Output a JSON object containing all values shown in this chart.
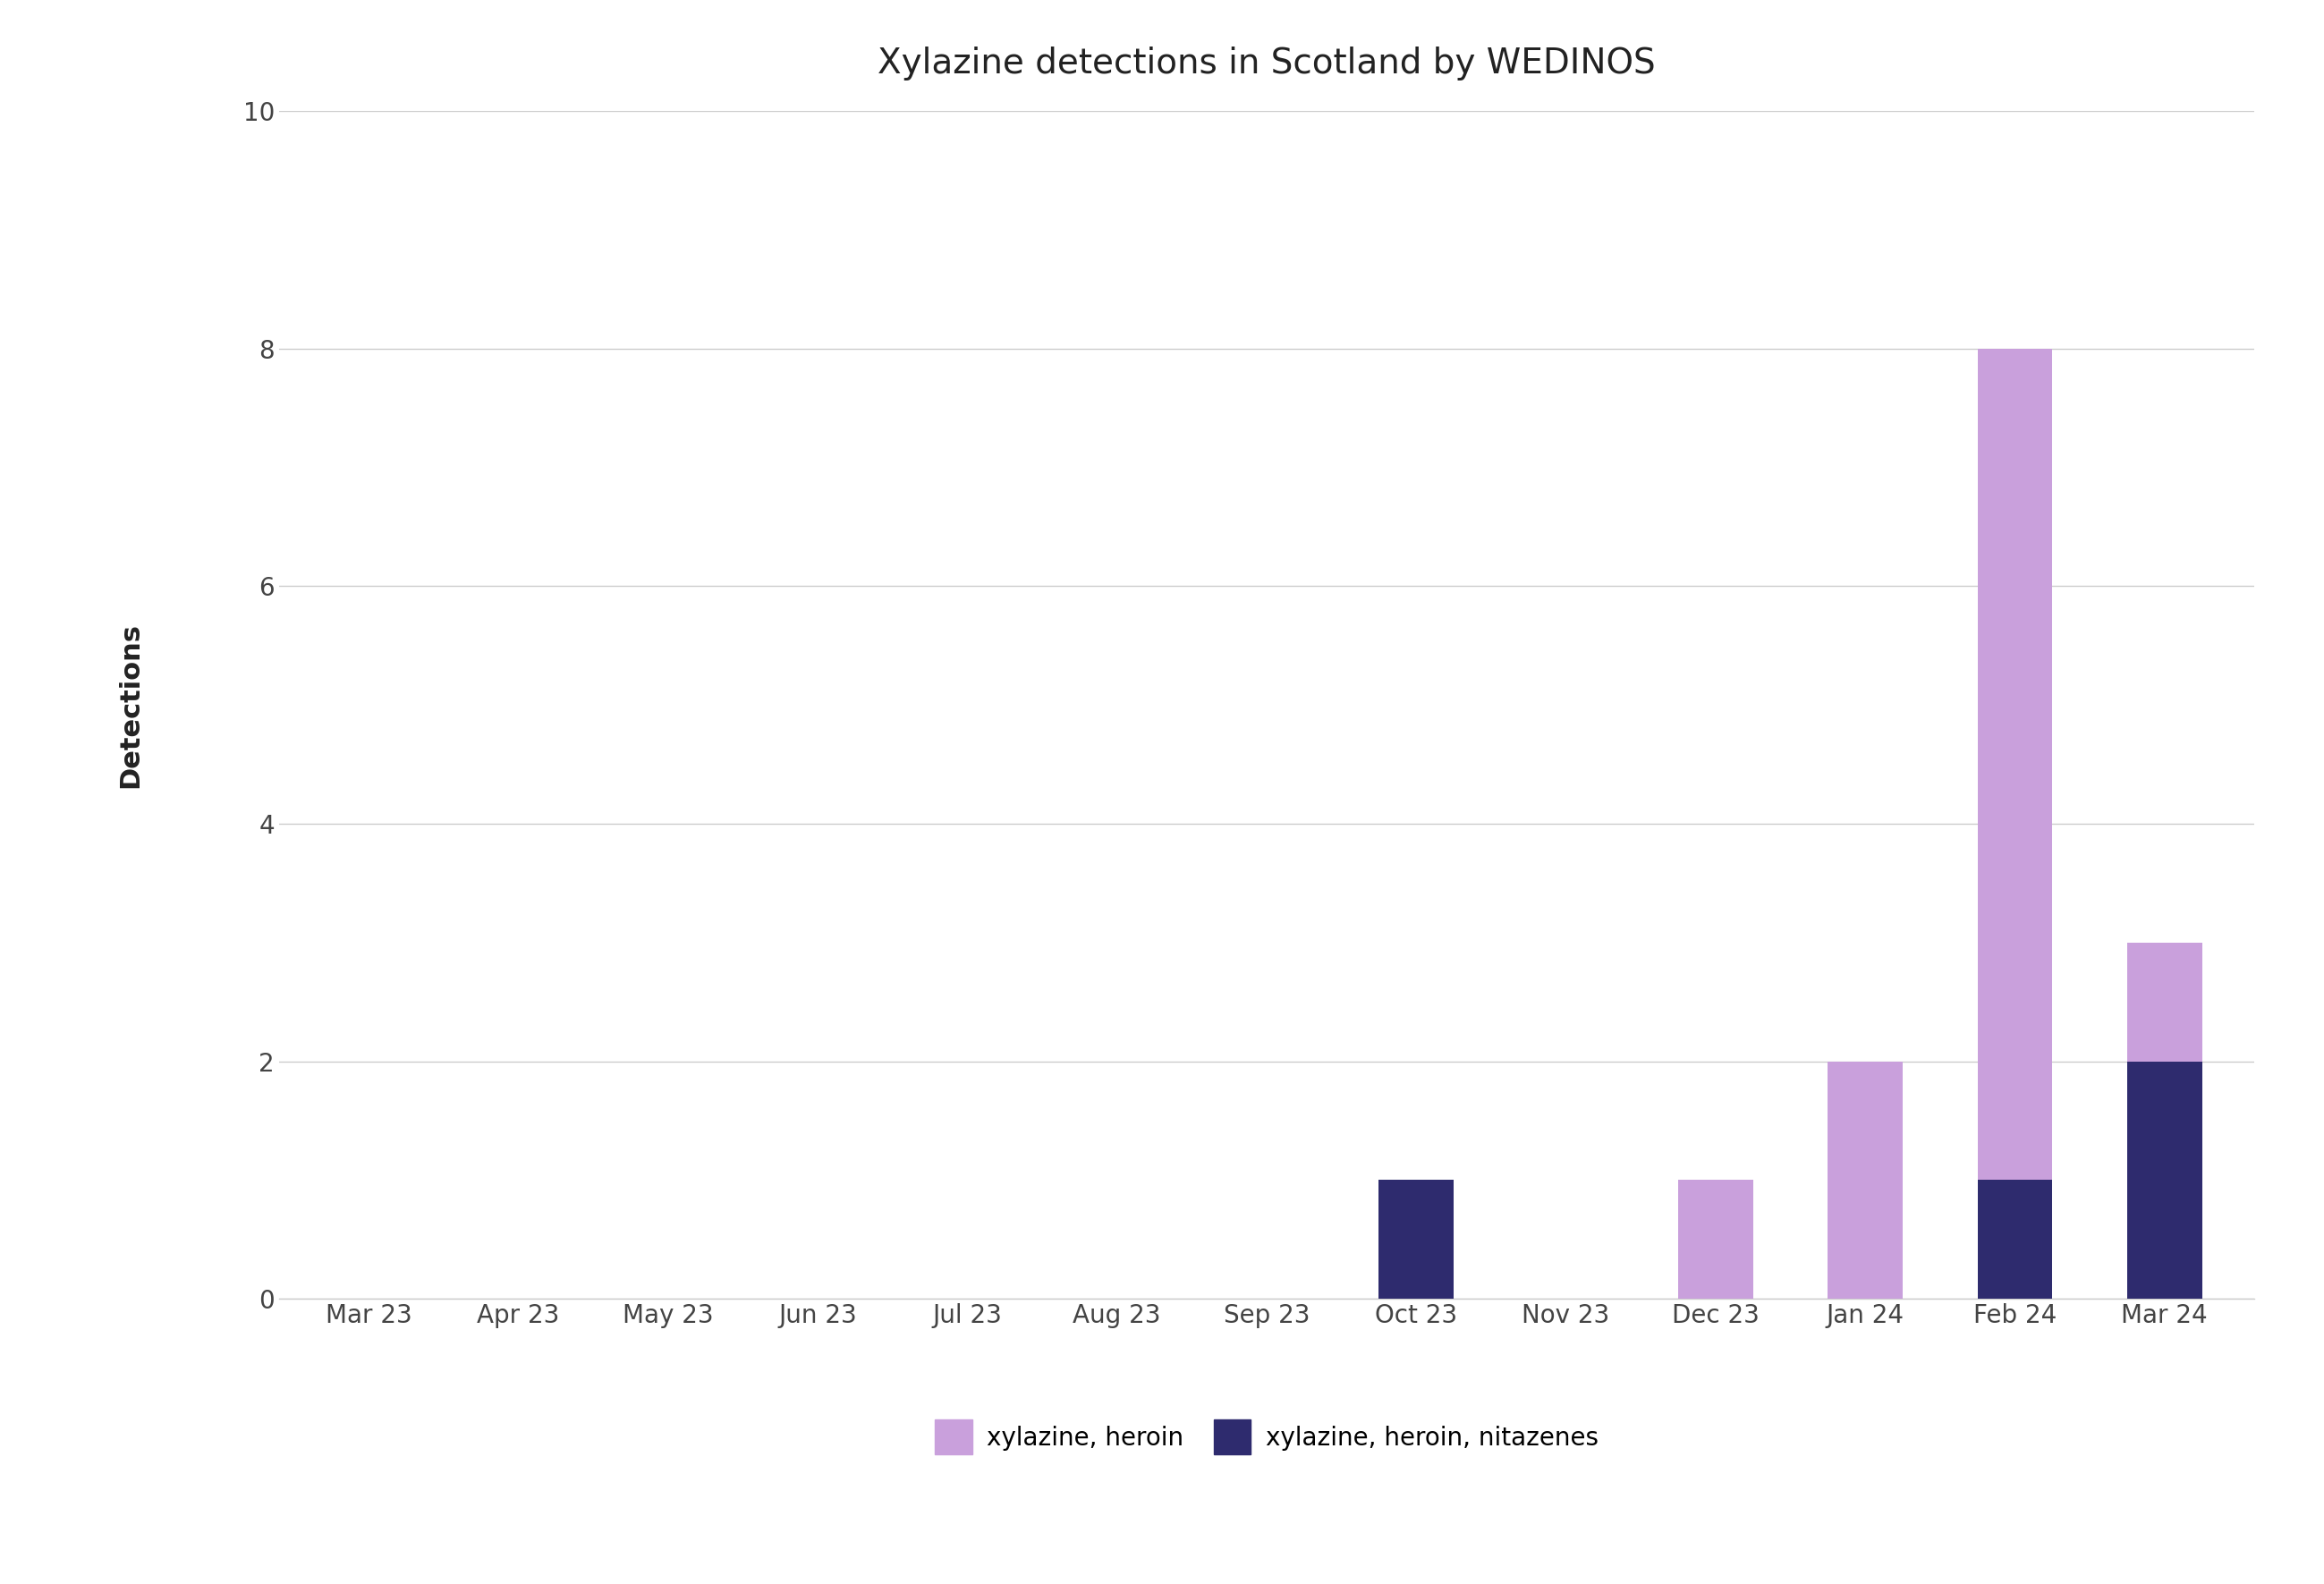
{
  "title": "Xylazine detections in Scotland by WEDINOS",
  "ylabel": "Detections",
  "months": [
    "Mar 23",
    "Apr 23",
    "May 23",
    "Jun 23",
    "Jul 23",
    "Aug 23",
    "Sep 23",
    "Oct 23",
    "Nov 23",
    "Dec 23",
    "Jan 24",
    "Feb 24",
    "Mar 24"
  ],
  "xylazine_heroin": [
    0,
    0,
    0,
    0,
    0,
    0,
    0,
    0,
    0,
    1,
    2,
    7,
    1
  ],
  "xylazine_heroin_nitazenes": [
    0,
    0,
    0,
    0,
    0,
    0,
    0,
    1,
    0,
    0,
    0,
    1,
    2
  ],
  "color_heroin": "#c9a0dc",
  "color_nitazenes": "#2e2b6e",
  "ylim": [
    0,
    10
  ],
  "yticks": [
    0,
    2,
    4,
    6,
    8,
    10
  ],
  "legend_heroin": "xylazine, heroin",
  "legend_nitazenes": "xylazine, heroin, nitazenes",
  "background_color": "#ffffff",
  "title_fontsize": 28,
  "axis_label_fontsize": 22,
  "tick_fontsize": 20,
  "legend_fontsize": 20
}
